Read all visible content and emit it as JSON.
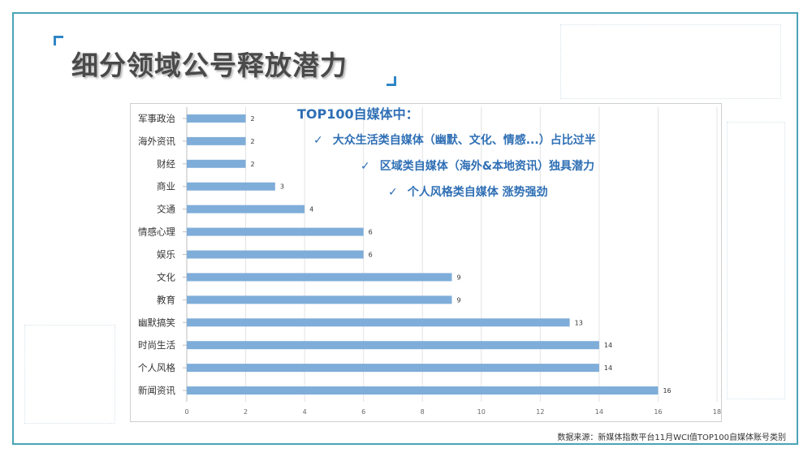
{
  "slide": {
    "title": "细分领域公号释放潜力",
    "source": "数据来源：新媒体指数平台11月WCI值TOP100自媒体账号类别"
  },
  "annotations": {
    "headline": "TOP100自媒体中：",
    "check_icon": "check-icon",
    "points": [
      "大众生活类自媒体（幽默、文化、情感...）占比过半",
      "区域类自媒体（海外&本地资讯）独具潜力",
      "个人风格类自媒体 涨势强劲"
    ]
  },
  "colors": {
    "bar": "#7fadd9",
    "frame": "#4aa3b8",
    "accent": "#2f6fb5",
    "title": "#4a4a4a"
  },
  "chart_data": {
    "type": "bar",
    "orientation": "horizontal",
    "categories": [
      "军事政治",
      "海外资讯",
      "财经",
      "商业",
      "交通",
      "情感心理",
      "娱乐",
      "文化",
      "教育",
      "幽默搞笑",
      "时尚生活",
      "个人风格",
      "新闻资讯"
    ],
    "values": [
      2,
      2,
      2,
      3,
      4,
      6,
      6,
      9,
      9,
      13,
      14,
      14,
      16
    ],
    "xlim": [
      0,
      18
    ],
    "xticks": [
      0,
      2,
      4,
      6,
      8,
      10,
      12,
      14,
      16,
      18
    ],
    "grid": true,
    "data_labels": true,
    "title": "",
    "xlabel": "",
    "ylabel": ""
  }
}
